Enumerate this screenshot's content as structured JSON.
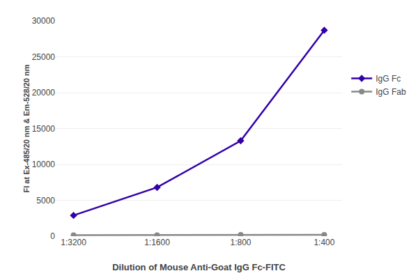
{
  "chart_data": {
    "type": "line",
    "xlabel": "Dilution of Mouse Anti-Goat IgG Fc-FITC",
    "ylabel": "FI at Ex-485/20 nm & Em-528/20 nm",
    "categories": [
      "1:3200",
      "1:1600",
      "1:800",
      "1:400"
    ],
    "series": [
      {
        "name": "IgG Fc",
        "color": "#3300aa",
        "marker": "diamond",
        "values": [
          2900,
          6800,
          13300,
          28700
        ]
      },
      {
        "name": "IgG Fab",
        "color": "#888888",
        "marker": "circle",
        "values": [
          150,
          150,
          200,
          200
        ]
      }
    ],
    "ylim": [
      0,
      30000
    ],
    "yticks": [
      0,
      5000,
      10000,
      15000,
      20000,
      25000,
      30000
    ],
    "grid": true,
    "legend": "right"
  }
}
